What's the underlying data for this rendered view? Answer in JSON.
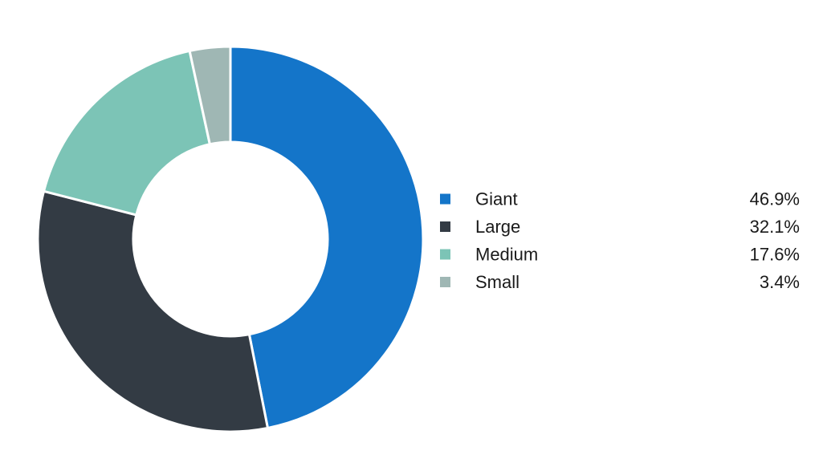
{
  "chart_data": {
    "type": "pie",
    "donut": true,
    "legend_position": "right",
    "categories": [
      "Giant",
      "Large",
      "Medium",
      "Small"
    ],
    "values": [
      46.9,
      32.1,
      17.6,
      3.4
    ],
    "value_labels": [
      "46.9%",
      "32.1%",
      "17.6%",
      "3.4%"
    ],
    "colors": [
      "#1475c9",
      "#333b44",
      "#7cc4b6",
      "#9fb7b4"
    ]
  }
}
